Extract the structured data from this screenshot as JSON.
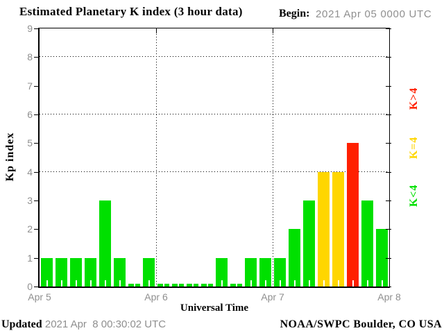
{
  "chart_data": {
    "type": "bar",
    "title": "Estimated Planetary K index (3 hour data)",
    "begin": {
      "label": "Begin:",
      "value": "2021 Apr 05 0000 UTC"
    },
    "xlabel": "Universal Time",
    "ylabel": "Kp index",
    "ylim": [
      0,
      9
    ],
    "yticks": [
      0,
      1,
      2,
      3,
      4,
      5,
      6,
      7,
      8,
      9
    ],
    "grid_y": [
      4,
      6,
      8
    ],
    "x_day_labels": [
      "Apr 5",
      "Apr 6",
      "Apr 7",
      "Apr 8"
    ],
    "bars_per_day": 8,
    "interval_hours": 3,
    "values": [
      1,
      1,
      1,
      1,
      3,
      1,
      0,
      1,
      0,
      0,
      0,
      0,
      1,
      0,
      1,
      1,
      1,
      2,
      3,
      4,
      4,
      5,
      3,
      2
    ],
    "color_rules": {
      "below_4": "#00E000",
      "equal_4": "#FFD600",
      "above_4": "#FF2000"
    },
    "legend": [
      {
        "id": "low",
        "label": "K<4",
        "color": "#00E000"
      },
      {
        "id": "mid",
        "label": "K=4",
        "color": "#FFD600"
      },
      {
        "id": "high",
        "label": "K>4",
        "color": "#FF2000"
      }
    ],
    "footer": {
      "updated_label": "Updated",
      "updated_value": " 2021 Apr  8 00:30:02 UTC",
      "credit": "NOAA/SWPC Boulder, CO USA"
    },
    "axis_color": "#000000",
    "tick_label_color": "#8f8f8f"
  }
}
